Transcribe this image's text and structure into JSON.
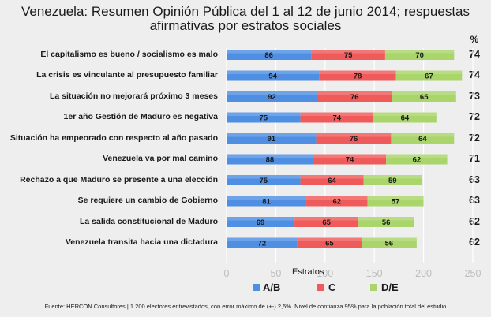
{
  "title_line1": "Venezuela: Resumen Opinión Pública del 1 al 12 de junio 2014; respuestas",
  "title_line2": "afirmativas por estratos sociales",
  "pct_header": "%",
  "xlabel": "Estratos",
  "source": "Fuente: HERCON Consultores | 1.200 electores entrevistados, con error máximo de (+-) 2,5%. Nivel de confianza 95% para la población total del estudio",
  "colors": {
    "A/B": "#4f8fe3",
    "C": "#ef5a5a",
    "D/E": "#a9d56a",
    "bg": "#eeeeee",
    "grid": "#ffffff"
  },
  "chart_data": {
    "type": "bar",
    "orientation": "horizontal",
    "stacked": true,
    "categories": [
      "El capitalismo es bueno / socialismo es malo",
      "La crisis es vinculante al presupuesto familiar",
      "La situación no mejorará próximo 3 meses",
      "1er año Gestión de Maduro es negativa",
      "Situación ha empeorado con respecto al año pasado",
      "Venezuela va por mal camino",
      "Rechazo a que Maduro se presente a una elección",
      "Se requiere un cambio de Gobierno",
      "La salida constitucional de Maduro",
      "Venezuela transita hacia una dictadura"
    ],
    "series": [
      {
        "name": "A/B",
        "values": [
          86,
          94,
          92,
          75,
          91,
          88,
          75,
          81,
          69,
          72
        ]
      },
      {
        "name": "C",
        "values": [
          75,
          78,
          76,
          74,
          76,
          74,
          64,
          62,
          65,
          65
        ]
      },
      {
        "name": "D/E",
        "values": [
          70,
          67,
          65,
          64,
          64,
          62,
          59,
          57,
          56,
          56
        ]
      }
    ],
    "percent": [
      "74",
      "74",
      "73",
      "72",
      "72",
      "71",
      "63",
      "63",
      "62",
      "62"
    ],
    "xlim": [
      0,
      250
    ],
    "xticks": [
      "0",
      "50",
      "100",
      "150",
      "200",
      "250"
    ],
    "xlabel": "Estratos",
    "legend": [
      "A/B",
      "C",
      "D/E"
    ],
    "legend_position": "bottom"
  }
}
